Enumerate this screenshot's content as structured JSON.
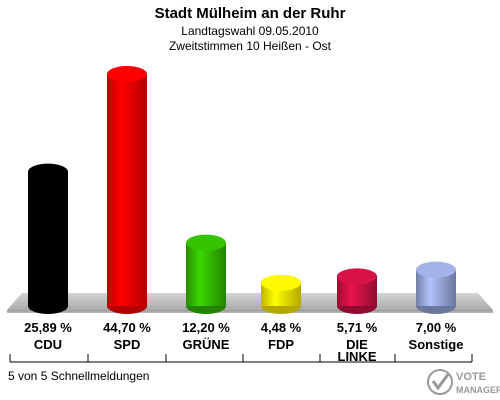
{
  "chart_data": {
    "type": "bar",
    "title": "Stadt Mülheim an der Ruhr",
    "subtitle_1": "Landtagswahl 09.05.2010",
    "subtitle_2": "Zweitstimmen 10 Heißen - Ost",
    "categories": [
      "CDU",
      "SPD",
      "GRÜNE",
      "FDP",
      "DIE LINKE",
      "Sonstige"
    ],
    "values": [
      25.89,
      44.7,
      12.2,
      4.48,
      5.71,
      7.0
    ],
    "value_labels": [
      "25,89 %",
      "44,70 %",
      "12,20 %",
      "4,48 %",
      "5,71 %",
      "7,00 %"
    ],
    "colors": [
      "#000000",
      "#ff0000",
      "#33bb00",
      "#ffee00",
      "#cc1144",
      "#99aadd"
    ],
    "ylim": [
      0,
      45
    ]
  },
  "footer": {
    "status": "5 von 5 Schnellmeldungen",
    "logo_text_1": "VOTE",
    "logo_text_2": "MANAGER"
  }
}
